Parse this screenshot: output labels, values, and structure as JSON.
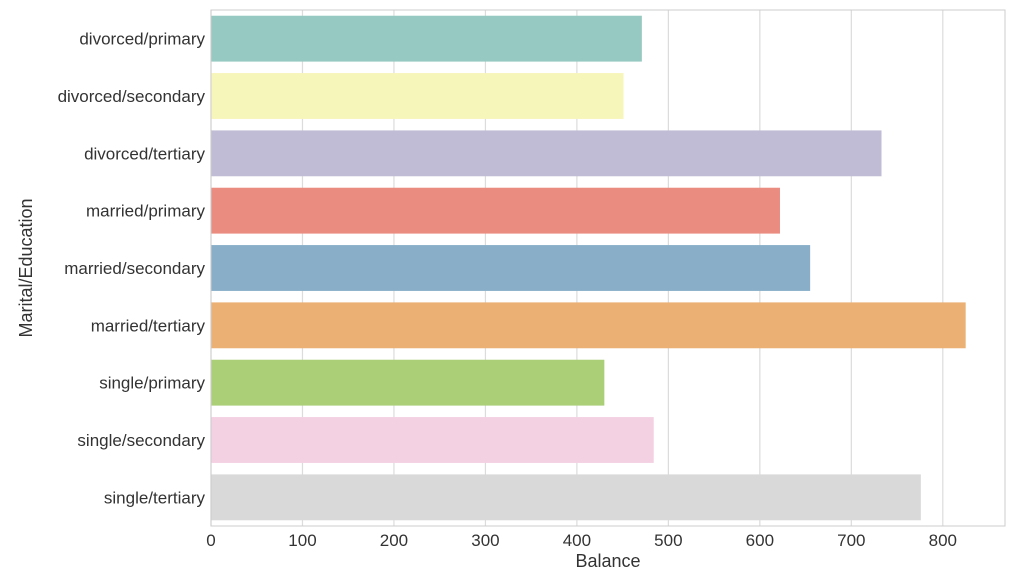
{
  "chart_data": {
    "type": "bar",
    "orientation": "horizontal",
    "title": "",
    "xlabel": "Balance",
    "ylabel": "Marital/Education",
    "xlim": [
      0,
      868
    ],
    "x_ticks": [
      0,
      100,
      200,
      300,
      400,
      500,
      600,
      700,
      800
    ],
    "grid": "vertical gridlines only",
    "categories": [
      "divorced/primary",
      "divorced/secondary",
      "divorced/tertiary",
      "married/primary",
      "married/secondary",
      "married/tertiary",
      "single/primary",
      "single/secondary",
      "single/tertiary"
    ],
    "values": [
      471,
      451,
      733,
      622,
      655,
      825,
      430,
      484,
      776
    ],
    "colors": [
      "#96C9C1",
      "#F7F6BA",
      "#C0BCD6",
      "#EA8C80",
      "#89AFC8",
      "#EBB073",
      "#ABCF77",
      "#F4D1E2",
      "#D9D9D9"
    ]
  }
}
